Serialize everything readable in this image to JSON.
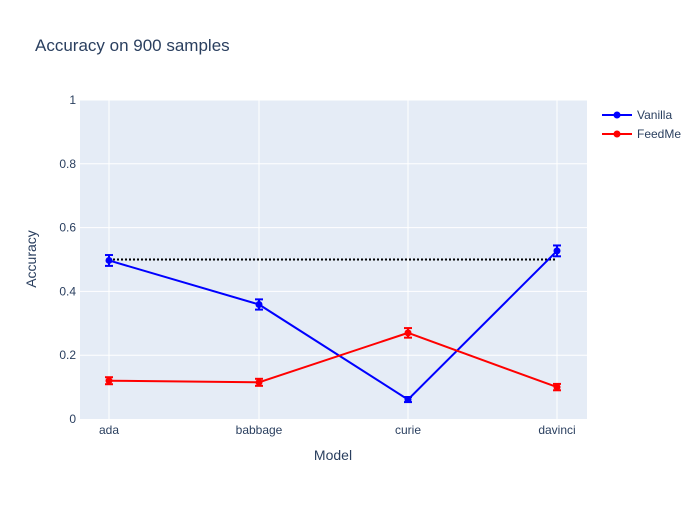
{
  "chart_data": {
    "type": "line",
    "title": "Accuracy on 900 samples",
    "xlabel": "Model",
    "ylabel": "Accuracy",
    "categories": [
      "ada",
      "babbage",
      "curie",
      "davinci"
    ],
    "ylim": [
      0,
      1
    ],
    "yticks": [
      0,
      0.2,
      0.4,
      0.6,
      0.8,
      1
    ],
    "ytick_labels": [
      "0",
      "0.2",
      "0.4",
      "0.6",
      "0.8",
      "1"
    ],
    "grid": true,
    "legend_position": "top-right",
    "plot_background": "#e5ecf6",
    "series": [
      {
        "name": "Vanilla",
        "color": "#0000ff",
        "values": [
          0.497,
          0.359,
          0.061,
          0.527
        ],
        "error": [
          0.017,
          0.016,
          0.008,
          0.017
        ]
      },
      {
        "name": "FeedMe",
        "color": "#ff0000",
        "values": [
          0.12,
          0.115,
          0.27,
          0.1
        ],
        "error": [
          0.011,
          0.011,
          0.015,
          0.01
        ]
      }
    ],
    "reference_line": {
      "y": 0.5,
      "style": "dotted",
      "color": "#000000"
    }
  }
}
